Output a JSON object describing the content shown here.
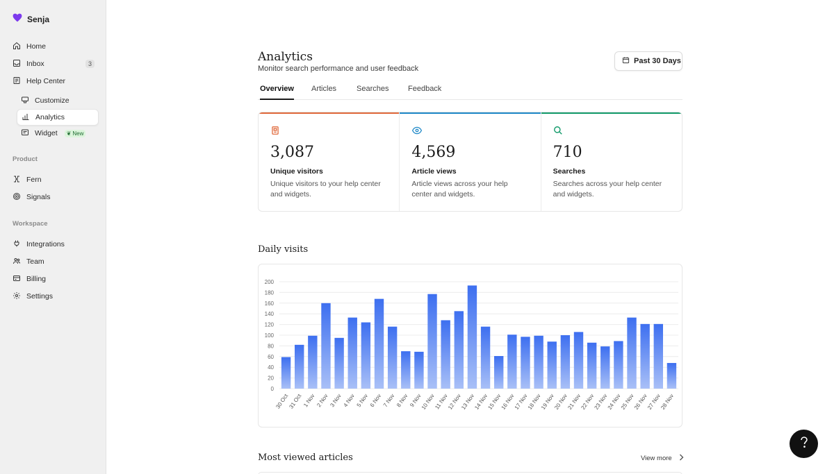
{
  "brand": {
    "name": "Senja",
    "accent": "#7c3aed"
  },
  "sidebar": {
    "items": [
      {
        "label": "Home",
        "icon": "home-icon"
      },
      {
        "label": "Inbox",
        "icon": "inbox-icon",
        "count": "3"
      },
      {
        "label": "Help Center",
        "icon": "book-icon"
      },
      {
        "label": "Customize",
        "icon": "palette-icon"
      },
      {
        "label": "Analytics",
        "icon": "bar-chart-icon"
      },
      {
        "label": "Widget",
        "icon": "widget-icon",
        "badge": "New"
      },
      {
        "label": "Fern",
        "icon": "fern-icon"
      },
      {
        "label": "Signals",
        "icon": "signals-icon"
      },
      {
        "label": "Integrations",
        "icon": "plug-icon"
      },
      {
        "label": "Team",
        "icon": "team-icon"
      },
      {
        "label": "Billing",
        "icon": "billing-icon"
      },
      {
        "label": "Settings",
        "icon": "gear-icon"
      }
    ],
    "sections": {
      "product": "Product",
      "workspace": "Workspace"
    }
  },
  "header": {
    "title": "Analytics",
    "subtitle": "Monitor search performance and user feedback",
    "range_label": "Past 30 Days"
  },
  "tabs": [
    "Overview",
    "Articles",
    "Searches",
    "Feedback"
  ],
  "stats": [
    {
      "value": "3,087",
      "label": "Unique visitors",
      "desc": "Unique visitors to your help center and widgets.",
      "color": "#e0683a"
    },
    {
      "value": "4,569",
      "label": "Article views",
      "desc": "Article views across your help center and widgets.",
      "color": "#1e88c7"
    },
    {
      "value": "710",
      "label": "Searches",
      "desc": "Searches across your help center and widgets.",
      "color": "#129a6a"
    }
  ],
  "daily_visits_title": "Daily visits",
  "most_viewed_title": "Most viewed articles",
  "view_more": "View more",
  "chart_data": {
    "type": "bar",
    "title": "Daily visits",
    "categories": [
      "30 Oct",
      "31 Oct",
      "1 Nov",
      "2 Nov",
      "3 Nov",
      "4 Nov",
      "5 Nov",
      "6 Nov",
      "7 Nov",
      "8 Nov",
      "9 Nov",
      "10 Nov",
      "11 Nov",
      "12 Nov",
      "13 Nov",
      "14 Nov",
      "15 Nov",
      "16 Nov",
      "17 Nov",
      "18 Nov",
      "19 Nov",
      "20 Nov",
      "21 Nov",
      "22 Nov",
      "23 Nov",
      "24 Nov",
      "25 Nov",
      "26 Nov",
      "27 Nov",
      "28 Nov"
    ],
    "values": [
      59,
      82,
      99,
      160,
      95,
      133,
      124,
      168,
      116,
      70,
      69,
      177,
      128,
      145,
      193,
      116,
      61,
      101,
      97,
      99,
      88,
      100,
      106,
      86,
      79,
      89,
      133,
      121,
      121,
      48
    ],
    "yticks": [
      0,
      20,
      40,
      60,
      80,
      100,
      120,
      140,
      160,
      180,
      200
    ],
    "ylim": [
      0,
      200
    ],
    "xlabel": "",
    "ylabel": "",
    "grid": true,
    "bar_color_top": "#3d6ff0",
    "bar_color_bottom": "#a9c0f7"
  }
}
